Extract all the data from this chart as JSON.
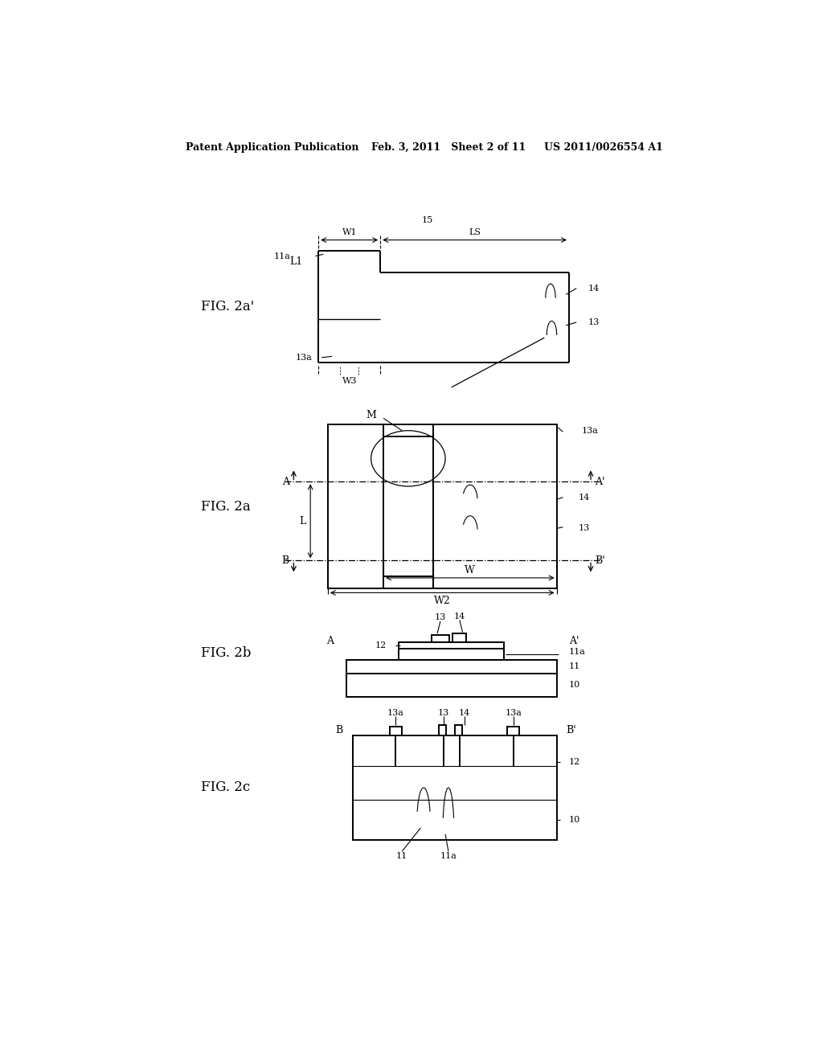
{
  "bg_color": "#ffffff",
  "line_color": "#000000",
  "header_left": "Patent Application Publication",
  "header_mid": "Feb. 3, 2011   Sheet 2 of 11",
  "header_right": "US 2011/0026554 A1",
  "fig_labels": {
    "fig2a_prime": "FIG. 2a'",
    "fig2a": "FIG. 2a",
    "fig2b": "FIG. 2b",
    "fig2c": "FIG. 2c"
  }
}
